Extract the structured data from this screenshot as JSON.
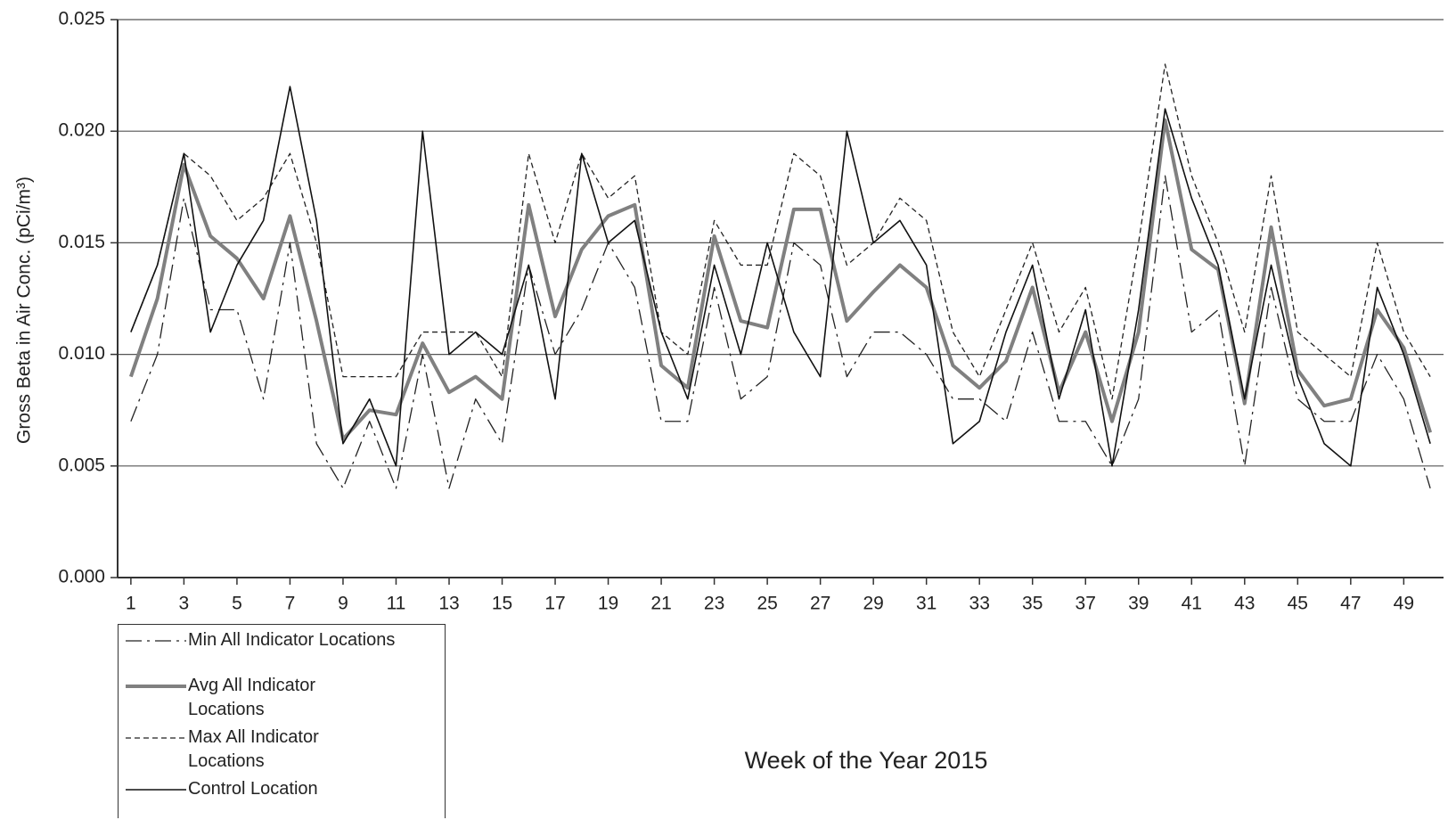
{
  "chart_data": {
    "type": "line",
    "ylabel": "Gross Beta in Air Conc.  (pCi/m³)",
    "xlabel": "Week of the Year 2015",
    "x": [
      1,
      2,
      3,
      4,
      5,
      6,
      7,
      8,
      9,
      10,
      11,
      12,
      13,
      14,
      15,
      16,
      17,
      18,
      19,
      20,
      21,
      22,
      23,
      24,
      25,
      26,
      27,
      28,
      29,
      30,
      31,
      32,
      33,
      34,
      35,
      36,
      37,
      38,
      39,
      40,
      41,
      42,
      43,
      44,
      45,
      46,
      47,
      48,
      49,
      50
    ],
    "xlim": [
      0.5,
      50.5
    ],
    "xticks": [
      1,
      3,
      5,
      7,
      9,
      11,
      13,
      15,
      17,
      19,
      21,
      23,
      25,
      27,
      29,
      31,
      33,
      35,
      37,
      39,
      41,
      43,
      45,
      47,
      49
    ],
    "ylim": [
      0,
      0.025
    ],
    "yticks": [
      {
        "value": 0,
        "label": "0.000"
      },
      {
        "value": 0.005,
        "label": "0.005"
      },
      {
        "value": 0.01,
        "label": "0.010"
      },
      {
        "value": 0.015,
        "label": "0.015"
      },
      {
        "value": 0.02,
        "label": "0.020"
      },
      {
        "value": 0.025,
        "label": "0.025"
      }
    ],
    "grid": true,
    "legend": "bottom-left",
    "series": [
      {
        "name": "Min All Indicator Locations",
        "color": "#222222",
        "dash": "dash-dot",
        "linewidth": 1.3,
        "values": [
          0.007,
          0.01,
          0.017,
          0.012,
          0.012,
          0.008,
          0.015,
          0.006,
          0.004,
          0.007,
          0.004,
          0.01,
          0.004,
          0.008,
          0.006,
          0.014,
          0.01,
          0.012,
          0.015,
          0.013,
          0.007,
          0.007,
          0.013,
          0.008,
          0.009,
          0.015,
          0.014,
          0.009,
          0.011,
          0.011,
          0.01,
          0.008,
          0.008,
          0.007,
          0.011,
          0.007,
          0.007,
          0.005,
          0.008,
          0.018,
          0.011,
          0.012,
          0.005,
          0.013,
          0.008,
          0.007,
          0.007,
          0.01,
          0.008,
          0.004
        ]
      },
      {
        "name": "Avg All Indicator Locations",
        "color": "#808080",
        "dash": "solid",
        "linewidth": 4,
        "values": [
          0.009,
          0.0125,
          0.0185,
          0.0153,
          0.0143,
          0.0125,
          0.0162,
          0.0115,
          0.0062,
          0.0075,
          0.0073,
          0.0105,
          0.0083,
          0.009,
          0.008,
          0.0167,
          0.0117,
          0.0147,
          0.0162,
          0.0167,
          0.0095,
          0.0085,
          0.0153,
          0.0115,
          0.0112,
          0.0165,
          0.0165,
          0.0115,
          0.0128,
          0.014,
          0.013,
          0.0095,
          0.0085,
          0.0097,
          0.013,
          0.0083,
          0.011,
          0.007,
          0.011,
          0.0205,
          0.0147,
          0.0138,
          0.0078,
          0.0157,
          0.0093,
          0.0077,
          0.008,
          0.012,
          0.0103,
          0.0065
        ]
      },
      {
        "name": "Max All Indicator Locations",
        "color": "#222222",
        "dash": "dashed",
        "linewidth": 1.3,
        "values": [
          0.011,
          0.014,
          0.019,
          0.018,
          0.016,
          0.017,
          0.019,
          0.015,
          0.009,
          0.009,
          0.009,
          0.011,
          0.011,
          0.011,
          0.009,
          0.019,
          0.015,
          0.019,
          0.017,
          0.018,
          0.011,
          0.01,
          0.016,
          0.014,
          0.014,
          0.019,
          0.018,
          0.014,
          0.015,
          0.017,
          0.016,
          0.011,
          0.009,
          0.012,
          0.015,
          0.011,
          0.013,
          0.008,
          0.015,
          0.023,
          0.018,
          0.015,
          0.011,
          0.018,
          0.011,
          0.01,
          0.009,
          0.015,
          0.011,
          0.009
        ]
      },
      {
        "name": "Control Location",
        "color": "#111111",
        "dash": "solid",
        "linewidth": 1.6,
        "values": [
          0.011,
          0.014,
          0.019,
          0.011,
          0.014,
          0.016,
          0.022,
          0.016,
          0.006,
          0.008,
          0.005,
          0.02,
          0.01,
          0.011,
          0.01,
          0.014,
          0.008,
          0.019,
          0.015,
          0.016,
          0.011,
          0.008,
          0.014,
          0.01,
          0.015,
          0.011,
          0.009,
          0.02,
          0.015,
          0.016,
          0.014,
          0.006,
          0.007,
          0.011,
          0.014,
          0.008,
          0.012,
          0.005,
          0.012,
          0.021,
          0.017,
          0.014,
          0.008,
          0.014,
          0.009,
          0.006,
          0.005,
          0.013,
          0.01,
          0.006
        ]
      }
    ]
  }
}
